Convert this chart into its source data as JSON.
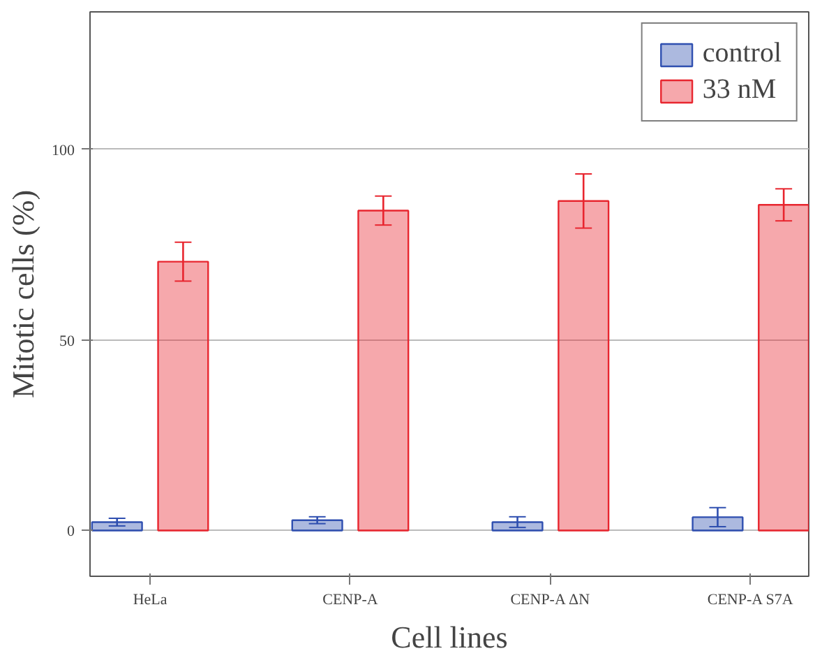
{
  "chart_data": {
    "type": "bar",
    "xlabel": "Cell lines",
    "ylabel": "Mitotic cells (%)",
    "categories": [
      "HeLa",
      "CENP-A",
      "CENP-A ΔN",
      "CENP-A S7A"
    ],
    "series": [
      {
        "name": "control",
        "color": "#2f4fb0",
        "values": [
          2.2,
          2.7,
          2.2,
          3.5
        ],
        "errors": [
          1.0,
          0.9,
          1.4,
          2.5
        ]
      },
      {
        "name": "33 nM",
        "color": "#e8262f",
        "values": [
          70.5,
          83.9,
          86.4,
          85.4
        ],
        "errors": [
          5.1,
          3.8,
          7.1,
          4.2
        ]
      }
    ],
    "ylim": [
      -12,
      136
    ],
    "yticks": [
      0,
      50,
      100
    ],
    "grid": "y",
    "legend": "top right"
  }
}
